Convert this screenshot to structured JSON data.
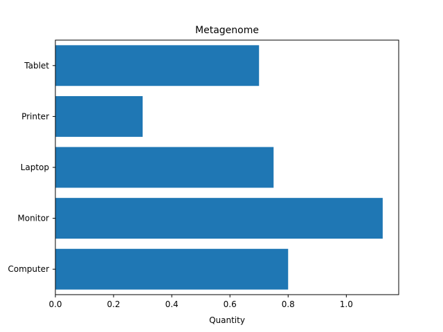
{
  "chart_data": {
    "type": "bar",
    "orientation": "horizontal",
    "title": "Metagenome",
    "xlabel": "Quantity",
    "ylabel": "",
    "categories": [
      "Computer",
      "Monitor",
      "Laptop",
      "Printer",
      "Tablet"
    ],
    "values": [
      0.8,
      1.125,
      0.75,
      0.3,
      0.7
    ],
    "xlim": [
      0,
      1.18
    ],
    "xticks": [
      "0.0",
      "0.2",
      "0.4",
      "0.6",
      "0.8",
      "1.0"
    ],
    "grid": false,
    "legend": "none",
    "bar_color": "#1f77b4"
  }
}
